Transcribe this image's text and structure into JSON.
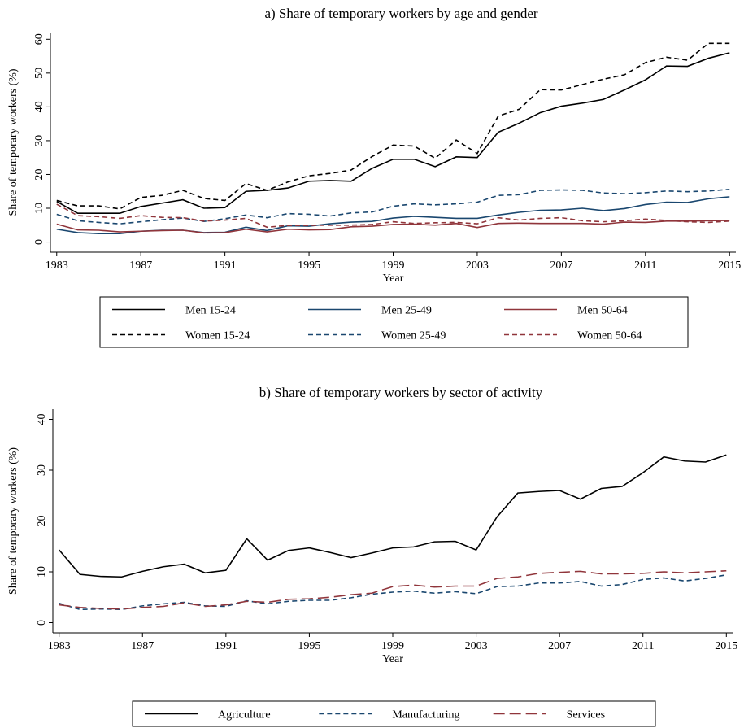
{
  "chart_data": [
    {
      "type": "line",
      "title": "a) Share of temporary workers by age and gender",
      "xlabel": "Year",
      "ylabel": "Share of temporary workers (%)",
      "x": [
        1983,
        1984,
        1985,
        1986,
        1987,
        1988,
        1989,
        1990,
        1991,
        1992,
        1993,
        1994,
        1995,
        1996,
        1997,
        1998,
        1999,
        2000,
        2001,
        2002,
        2003,
        2004,
        2005,
        2006,
        2007,
        2008,
        2009,
        2010,
        2011,
        2012,
        2013,
        2014,
        2015
      ],
      "xlim": [
        1982.7,
        2015.3
      ],
      "xticks": [
        1983,
        1987,
        1991,
        1995,
        1999,
        2003,
        2007,
        2011,
        2015
      ],
      "ylim": [
        -3,
        62
      ],
      "yticks": [
        0,
        10,
        20,
        30,
        40,
        50,
        60
      ],
      "legend": "bottom",
      "series": [
        {
          "name": "Men 15-24",
          "color": "#000000",
          "dash": "solid",
          "values": [
            12,
            8.5,
            8.5,
            8.5,
            10.5,
            11.5,
            12.5,
            10,
            10.2,
            15,
            15.3,
            16,
            18,
            18.2,
            18,
            21.8,
            24.5,
            24.5,
            22.3,
            25.2,
            25,
            32.5,
            35.2,
            38.3,
            40.2,
            41.1,
            42.2,
            45,
            48,
            52.1,
            52,
            54.4,
            56
          ]
        },
        {
          "name": "Men 25-49",
          "color": "#1a476f",
          "dash": "solid",
          "values": [
            3.8,
            2.8,
            2.5,
            2.5,
            3.2,
            3.5,
            3.5,
            2.8,
            2.9,
            4.4,
            3.4,
            4.8,
            4.7,
            5.4,
            5.9,
            6.1,
            7.1,
            7.6,
            7.3,
            7,
            7,
            8,
            8.8,
            9.4,
            9.5,
            10,
            9.3,
            9.9,
            11.1,
            11.8,
            11.7,
            12.8,
            13.4
          ]
        },
        {
          "name": "Men 50-64",
          "color": "#90353b",
          "dash": "solid",
          "values": [
            5.3,
            3.6,
            3.5,
            3,
            3.2,
            3.4,
            3.5,
            2.7,
            2.8,
            3.8,
            3,
            3.8,
            3.6,
            3.7,
            4.5,
            4.7,
            5.2,
            5.3,
            5,
            5.5,
            4.3,
            5.5,
            5.6,
            5.5,
            5.5,
            5.5,
            5.3,
            5.9,
            5.8,
            6.2,
            6.2,
            6.3,
            6.4
          ]
        },
        {
          "name": "Women 15-24",
          "color": "#000000",
          "dash": "short",
          "values": [
            12.3,
            10.7,
            10.7,
            9.8,
            13.2,
            13.8,
            15.3,
            12.9,
            12.3,
            17.3,
            15.3,
            17.8,
            19.6,
            20.3,
            21.3,
            25.3,
            28.7,
            28.4,
            24.8,
            30.2,
            26.2,
            37.3,
            39.3,
            45.1,
            45,
            46.6,
            48.2,
            49.5,
            53.1,
            54.7,
            53.8,
            58.8,
            58.8
          ]
        },
        {
          "name": "Women 25-49",
          "color": "#1a476f",
          "dash": "short",
          "values": [
            8.2,
            6.3,
            5.8,
            5.4,
            6,
            6.6,
            7.1,
            6.1,
            6.9,
            8,
            7.2,
            8.4,
            8.2,
            7.7,
            8.6,
            8.9,
            10.6,
            11.3,
            11,
            11.3,
            11.8,
            13.8,
            14,
            15.3,
            15.4,
            15.3,
            14.5,
            14.3,
            14.6,
            15.1,
            14.9,
            15.1,
            15.6
          ]
        },
        {
          "name": "Women 50-64",
          "color": "#90353b",
          "dash": "short",
          "values": [
            11.2,
            7.8,
            7.5,
            7,
            7.8,
            7.3,
            7.2,
            6.2,
            6.5,
            7,
            4.4,
            4.9,
            4.9,
            5,
            5,
            5.2,
            6,
            5.5,
            5.7,
            5.8,
            5.4,
            7.2,
            6.5,
            7,
            7.2,
            6.3,
            6,
            6.3,
            6.8,
            6.4,
            6,
            5.8,
            6.2
          ]
        }
      ]
    },
    {
      "type": "line",
      "title": "b) Share of temporary workers by sector of activity",
      "xlabel": "Year",
      "ylabel": "Share of temporary workers (%)",
      "x": [
        1983,
        1984,
        1985,
        1986,
        1987,
        1988,
        1989,
        1990,
        1991,
        1992,
        1993,
        1994,
        1995,
        1996,
        1997,
        1998,
        1999,
        2000,
        2001,
        2002,
        2003,
        2004,
        2005,
        2006,
        2007,
        2008,
        2009,
        2010,
        2011,
        2012,
        2013,
        2014,
        2015
      ],
      "xlim": [
        1982.7,
        2015.3
      ],
      "xticks": [
        1983,
        1987,
        1991,
        1995,
        1999,
        2003,
        2007,
        2011,
        2015
      ],
      "ylim": [
        -2,
        42
      ],
      "yticks": [
        0,
        10,
        20,
        30,
        40
      ],
      "legend": "bottom",
      "series": [
        {
          "name": "Agriculture",
          "color": "#000000",
          "dash": "solid",
          "values": [
            14.3,
            9.5,
            9.1,
            9,
            10.1,
            11,
            11.5,
            9.8,
            10.3,
            16.5,
            12.3,
            14.2,
            14.7,
            13.8,
            12.8,
            13.7,
            14.7,
            14.9,
            15.9,
            16,
            14.3,
            20.8,
            25.5,
            25.8,
            26,
            24.3,
            26.4,
            26.8,
            29.5,
            32.6,
            31.8,
            31.6,
            33
          ]
        },
        {
          "name": "Manufacturing",
          "color": "#1a476f",
          "dash": "short",
          "values": [
            3.8,
            2.6,
            2.7,
            2.6,
            3.3,
            3.7,
            4,
            3.3,
            3.2,
            4.3,
            3.7,
            4.2,
            4.4,
            4.4,
            4.9,
            5.6,
            6,
            6.2,
            5.8,
            6.1,
            5.7,
            7.1,
            7.2,
            7.8,
            7.8,
            8.1,
            7.2,
            7.5,
            8.5,
            8.8,
            8.2,
            8.7,
            9.4
          ]
        },
        {
          "name": "Services",
          "color": "#90353b",
          "dash": "long",
          "values": [
            3.5,
            3,
            2.8,
            2.7,
            3,
            3.2,
            3.9,
            3.2,
            3.5,
            4.2,
            4,
            4.6,
            4.7,
            5,
            5.5,
            5.8,
            7.1,
            7.4,
            7,
            7.2,
            7.2,
            8.7,
            9,
            9.7,
            9.9,
            10.1,
            9.6,
            9.6,
            9.7,
            10,
            9.8,
            10,
            10.2
          ]
        }
      ]
    }
  ]
}
